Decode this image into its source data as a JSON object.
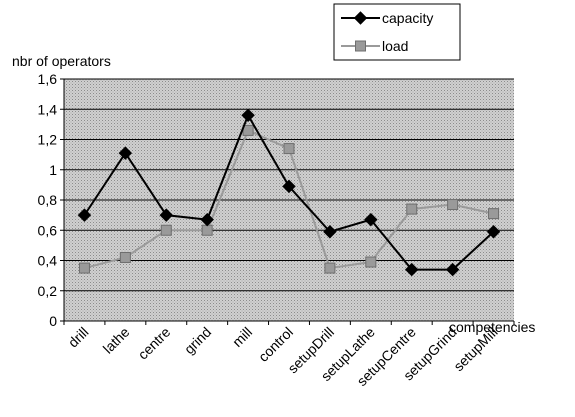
{
  "chart_data": {
    "type": "line",
    "title": "",
    "xlabel": "competencies",
    "ylabel": "nbr of operators",
    "ylim": [
      0,
      1.6
    ],
    "yticks": [
      "0",
      "0,2",
      "0,4",
      "0,6",
      "0,8",
      "1",
      "1,2",
      "1,4",
      "1,6"
    ],
    "grid": true,
    "legend_position": "top-right",
    "categories": [
      "drill",
      "lathe",
      "centre",
      "grind",
      "mill",
      "control",
      "setupDrill",
      "setupLathe",
      "setupCentre",
      "setupGrind",
      "setupMill"
    ],
    "series": [
      {
        "name": "capacity",
        "color": "#000000",
        "marker": "diamond",
        "values": [
          0.7,
          1.11,
          0.7,
          0.67,
          1.36,
          0.89,
          0.59,
          0.67,
          0.34,
          0.34,
          0.59
        ]
      },
      {
        "name": "load",
        "color": "#9a9a9a",
        "marker": "square",
        "values": [
          0.35,
          0.42,
          0.6,
          0.6,
          1.26,
          1.14,
          0.35,
          0.39,
          0.74,
          0.77,
          0.71
        ]
      }
    ]
  }
}
